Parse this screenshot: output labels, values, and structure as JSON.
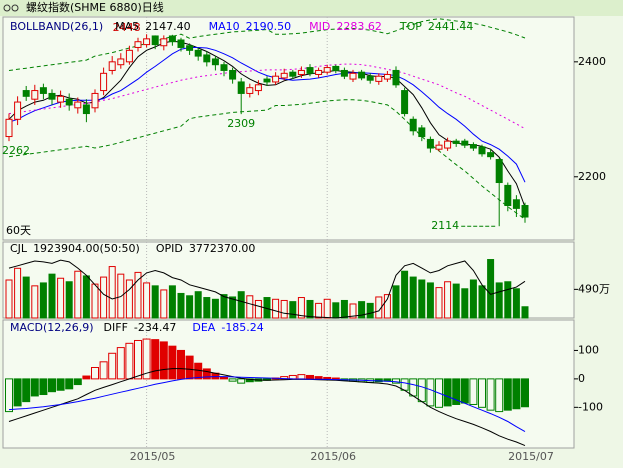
{
  "chart_data": [
    {
      "type": "candlestick",
      "title": "螺纹指数(SHME 6880)日线",
      "label": "BOLLBAND(26,1)",
      "period_label": "60天",
      "up_color": "#e00000",
      "down_color": "#008000",
      "open": [
        2270,
        2300,
        2350,
        2335,
        2355,
        2345,
        2330,
        2335,
        2320,
        2325,
        2320,
        2350,
        2385,
        2395,
        2400,
        2425,
        2430,
        2445,
        2428,
        2445,
        2438,
        2428,
        2420,
        2412,
        2405,
        2395,
        2385,
        2365,
        2345,
        2350,
        2370,
        2365,
        2372,
        2382,
        2378,
        2390,
        2378,
        2382,
        2392,
        2385,
        2370,
        2382,
        2375,
        2366,
        2370,
        2385,
        2350,
        2300,
        2285,
        2265,
        2248,
        2250,
        2262,
        2262,
        2256,
        2252,
        2242,
        2230,
        2185,
        2160,
        2150
      ],
      "high": [
        2310,
        2340,
        2358,
        2360,
        2362,
        2352,
        2350,
        2345,
        2338,
        2335,
        2352,
        2390,
        2410,
        2415,
        2428,
        2442,
        2448,
        2446,
        2446,
        2447,
        2442,
        2432,
        2425,
        2418,
        2410,
        2400,
        2390,
        2372,
        2362,
        2368,
        2375,
        2382,
        2388,
        2386,
        2392,
        2396,
        2390,
        2395,
        2395,
        2390,
        2386,
        2386,
        2380,
        2380,
        2384,
        2392,
        2355,
        2305,
        2290,
        2270,
        2262,
        2268,
        2266,
        2266,
        2260,
        2256,
        2248,
        2232,
        2190,
        2168,
        2155
      ],
      "low": [
        2262,
        2290,
        2332,
        2325,
        2335,
        2325,
        2320,
        2315,
        2310,
        2295,
        2312,
        2342,
        2378,
        2388,
        2395,
        2418,
        2425,
        2422,
        2420,
        2428,
        2418,
        2412,
        2402,
        2392,
        2385,
        2375,
        2362,
        2309,
        2338,
        2342,
        2358,
        2360,
        2368,
        2370,
        2372,
        2375,
        2372,
        2378,
        2380,
        2370,
        2365,
        2368,
        2362,
        2360,
        2365,
        2355,
        2305,
        2272,
        2262,
        2242,
        2244,
        2245,
        2252,
        2250,
        2245,
        2235,
        2230,
        2114,
        2140,
        2130,
        2120
      ],
      "close": [
        2300,
        2330,
        2340,
        2350,
        2345,
        2335,
        2340,
        2325,
        2330,
        2310,
        2345,
        2380,
        2400,
        2405,
        2420,
        2435,
        2440,
        2430,
        2440,
        2435,
        2425,
        2420,
        2410,
        2400,
        2395,
        2385,
        2370,
        2345,
        2355,
        2360,
        2365,
        2375,
        2380,
        2375,
        2385,
        2380,
        2385,
        2390,
        2385,
        2375,
        2380,
        2372,
        2368,
        2375,
        2378,
        2360,
        2310,
        2280,
        2270,
        2250,
        2255,
        2262,
        2258,
        2255,
        2250,
        2240,
        2235,
        2190,
        2150,
        2145,
        2130
      ],
      "series": [
        {
          "name": "MA5",
          "color": "#000000",
          "style": "solid",
          "value_label": "2147.40",
          "values": [
            2300,
            2315,
            2323,
            2330,
            2333,
            2340,
            2342,
            2337,
            2335,
            2328,
            2330,
            2338,
            2353,
            2368,
            2390,
            2409,
            2420,
            2426,
            2433,
            2436,
            2434,
            2430,
            2424,
            2418,
            2410,
            2402,
            2392,
            2379,
            2370,
            2363,
            2359,
            2360,
            2367,
            2371,
            2376,
            2379,
            2381,
            2383,
            2385,
            2383,
            2382,
            2380,
            2376,
            2374,
            2375,
            2371,
            2357,
            2343,
            2320,
            2294,
            2273,
            2263,
            2259,
            2256,
            2256,
            2253,
            2248,
            2234,
            2210,
            2188,
            2147.4
          ]
        },
        {
          "name": "MA10",
          "color": "#0000ff",
          "style": "solid",
          "value_label": "2190.50",
          "values": [
            2295,
            2300,
            2308,
            2315,
            2320,
            2325,
            2330,
            2332,
            2333,
            2333,
            2333,
            2336,
            2344,
            2350,
            2360,
            2370,
            2382,
            2392,
            2403,
            2414,
            2422,
            2425,
            2425,
            2424,
            2420,
            2414,
            2407,
            2398,
            2390,
            2382,
            2376,
            2372,
            2370,
            2368,
            2369,
            2370,
            2372,
            2375,
            2378,
            2380,
            2381,
            2381,
            2380,
            2379,
            2378,
            2376,
            2369,
            2360,
            2348,
            2335,
            2321,
            2310,
            2300,
            2288,
            2274,
            2262,
            2256,
            2248,
            2236,
            2222,
            2190.5
          ]
        },
        {
          "name": "MID",
          "color": "#e000e0",
          "style": "dotted",
          "values": [
            2310,
            2312,
            2314,
            2316,
            2318,
            2320,
            2322,
            2324,
            2326,
            2328,
            2330,
            2333,
            2336,
            2340,
            2344,
            2348,
            2352,
            2356,
            2360,
            2364,
            2368,
            2371,
            2374,
            2376,
            2378,
            2380,
            2382,
            2383,
            2384,
            2385,
            2386,
            2386,
            2386,
            2387,
            2388,
            2390,
            2392,
            2394,
            2395,
            2396,
            2396,
            2395,
            2393,
            2390,
            2387,
            2384,
            2380,
            2375,
            2370,
            2365,
            2360,
            2353,
            2346,
            2340,
            2332,
            2324,
            2316,
            2308,
            2300,
            2292,
            2283.62
          ]
        },
        {
          "name": "TOP",
          "color": "#008000",
          "style": "dashed",
          "values": [
            2385,
            2387,
            2389,
            2391,
            2393,
            2395,
            2397,
            2399,
            2401,
            2403,
            2410,
            2413,
            2416,
            2420,
            2424,
            2428,
            2432,
            2436,
            2440,
            2444,
            2448,
            2441,
            2444,
            2446,
            2448,
            2450,
            2452,
            2453,
            2454,
            2455,
            2456,
            2448,
            2448,
            2449,
            2450,
            2452,
            2454,
            2456,
            2457,
            2458,
            2458,
            2457,
            2455,
            2452,
            2449,
            2454,
            2460,
            2465,
            2470,
            2473,
            2475,
            2473,
            2471,
            2470,
            2467,
            2464,
            2460,
            2456,
            2452,
            2447,
            2441.44
          ]
        },
        {
          "color": "#008000",
          "style": "dashed",
          "values": [
            2235,
            2237,
            2239,
            2241,
            2243,
            2245,
            2247,
            2249,
            2251,
            2253,
            2250,
            2253,
            2256,
            2260,
            2264,
            2268,
            2272,
            2276,
            2280,
            2284,
            2288,
            2301,
            2304,
            2306,
            2308,
            2310,
            2312,
            2313,
            2314,
            2315,
            2316,
            2324,
            2324,
            2325,
            2326,
            2328,
            2330,
            2332,
            2333,
            2334,
            2334,
            2333,
            2331,
            2328,
            2325,
            2314,
            2300,
            2285,
            2270,
            2257,
            2245,
            2233,
            2221,
            2210,
            2197,
            2184,
            2172,
            2160,
            2148,
            2137,
            2125.8
          ]
        }
      ],
      "ylim": [
        2090,
        2478
      ],
      "yticks": [
        2400,
        2200
      ]
    },
    {
      "type": "bar",
      "series": [
        {
          "name": "CJL",
          "value_label": "1923904.00(50:50)",
          "values": [
            6500000,
            8500000,
            7000000,
            5500000,
            6000000,
            7500000,
            6800000,
            6200000,
            8000000,
            7200000,
            5800000,
            7000000,
            8800000,
            7500000,
            6500000,
            7800000,
            6000000,
            5500000,
            4800000,
            5500000,
            4200000,
            3800000,
            4500000,
            3500000,
            3200000,
            4000000,
            3600000,
            4500000,
            3800000,
            3000000,
            3500000,
            3200000,
            3000000,
            2800000,
            3500000,
            3000000,
            2500000,
            3200000,
            2600000,
            3000000,
            2400000,
            2800000,
            2500000,
            3600000,
            4000000,
            5500000,
            8000000,
            7000000,
            6500000,
            6000000,
            5200000,
            6200000,
            5800000,
            5000000,
            6500000,
            5500000,
            10000000,
            6000000,
            6200000,
            5000000,
            1923904
          ]
        },
        {
          "name": "OPID",
          "color": "#000000",
          "axis": "y2",
          "value_label": "3772370.00",
          "values": [
            4050000,
            4100000,
            4150000,
            4200000,
            4180000,
            4150000,
            4220000,
            4180000,
            4050000,
            3900000,
            3700000,
            3500000,
            3400000,
            3450000,
            3600000,
            3800000,
            3950000,
            4000000,
            3950000,
            3850000,
            3800000,
            3700000,
            3650000,
            3600000,
            3550000,
            3450000,
            3400000,
            3350000,
            3300000,
            3250000,
            3200000,
            3150000,
            3100000,
            3080000,
            3050000,
            3030000,
            3020000,
            3010000,
            3000000,
            3020000,
            3040000,
            3060000,
            3100000,
            3150000,
            3400000,
            3900000,
            4100000,
            4150000,
            4050000,
            3950000,
            4000000,
            4100000,
            4150000,
            4200000,
            4000000,
            3700000,
            3500000,
            3550000,
            3600000,
            3650000,
            3772370
          ]
        }
      ],
      "ylim": [
        0,
        13000000
      ],
      "yticks": [
        {
          "value": 4900000,
          "label": "490万"
        }
      ],
      "y2lim": [
        3000000,
        4600000
      ]
    },
    {
      "type": "macd",
      "label": "MACD(12,26,9)",
      "categories": [
        null,
        null,
        null,
        null,
        null,
        null,
        null,
        null,
        null,
        null,
        null,
        null,
        null,
        null,
        null,
        null,
        "2015/05",
        null,
        null,
        null,
        null,
        null,
        null,
        null,
        null,
        null,
        null,
        null,
        null,
        null,
        null,
        null,
        null,
        null,
        null,
        null,
        null,
        "2015/06",
        null,
        null,
        null,
        null,
        null,
        null,
        null,
        null,
        null,
        null,
        null,
        null,
        null,
        null,
        null,
        null,
        null,
        null,
        null,
        null,
        null,
        null,
        "2015/07"
      ],
      "histogram": [
        -115,
        -95,
        -80,
        -60,
        -55,
        -45,
        -40,
        -35,
        -20,
        10,
        40,
        60,
        90,
        110,
        125,
        135,
        140,
        138,
        130,
        115,
        100,
        80,
        55,
        35,
        20,
        5,
        -8,
        -15,
        -10,
        -8,
        -5,
        3,
        8,
        12,
        15,
        12,
        8,
        5,
        3,
        -5,
        -8,
        -10,
        -12,
        -10,
        -8,
        -15,
        -40,
        -60,
        -80,
        -95,
        -100,
        -95,
        -90,
        -85,
        -90,
        -100,
        -110,
        -115,
        -110,
        -105,
        -98
      ],
      "series": [
        {
          "name": "DIFF",
          "color": "#000000",
          "values": [
            -150,
            -140,
            -130,
            -120,
            -110,
            -100,
            -90,
            -80,
            -70,
            -55,
            -40,
            -30,
            -20,
            -10,
            0,
            10,
            20,
            28,
            33,
            36,
            36,
            34,
            30,
            26,
            20,
            14,
            8,
            2,
            -2,
            -4,
            -5,
            -4,
            -3,
            -2,
            -1,
            -2,
            -3,
            -4,
            -5,
            -7,
            -9,
            -11,
            -13,
            -15,
            -18,
            -25,
            -40,
            -60,
            -80,
            -100,
            -115,
            -128,
            -140,
            -150,
            -160,
            -172,
            -185,
            -200,
            -212,
            -222,
            -234.47
          ]
        },
        {
          "name": "DEA",
          "color": "#0000ff",
          "values": [
            -108,
            -106,
            -104,
            -101,
            -98,
            -94,
            -90,
            -85,
            -80,
            -74,
            -68,
            -61,
            -54,
            -47,
            -40,
            -33,
            -26,
            -19,
            -13,
            -7,
            -2,
            2,
            5,
            7,
            8,
            8,
            7,
            6,
            5,
            4,
            3,
            2,
            1,
            0,
            -0.5,
            -1,
            -1.5,
            -2,
            -2.5,
            -3,
            -4,
            -5,
            -6,
            -7,
            -8,
            -10,
            -14,
            -20,
            -28,
            -38,
            -50,
            -62,
            -74,
            -86,
            -98,
            -110,
            -122,
            -135,
            -150,
            -168,
            -185.24
          ]
        }
      ],
      "ylim": [
        -243,
        207
      ],
      "yticks": [
        100,
        0,
        -100
      ]
    }
  ]
}
